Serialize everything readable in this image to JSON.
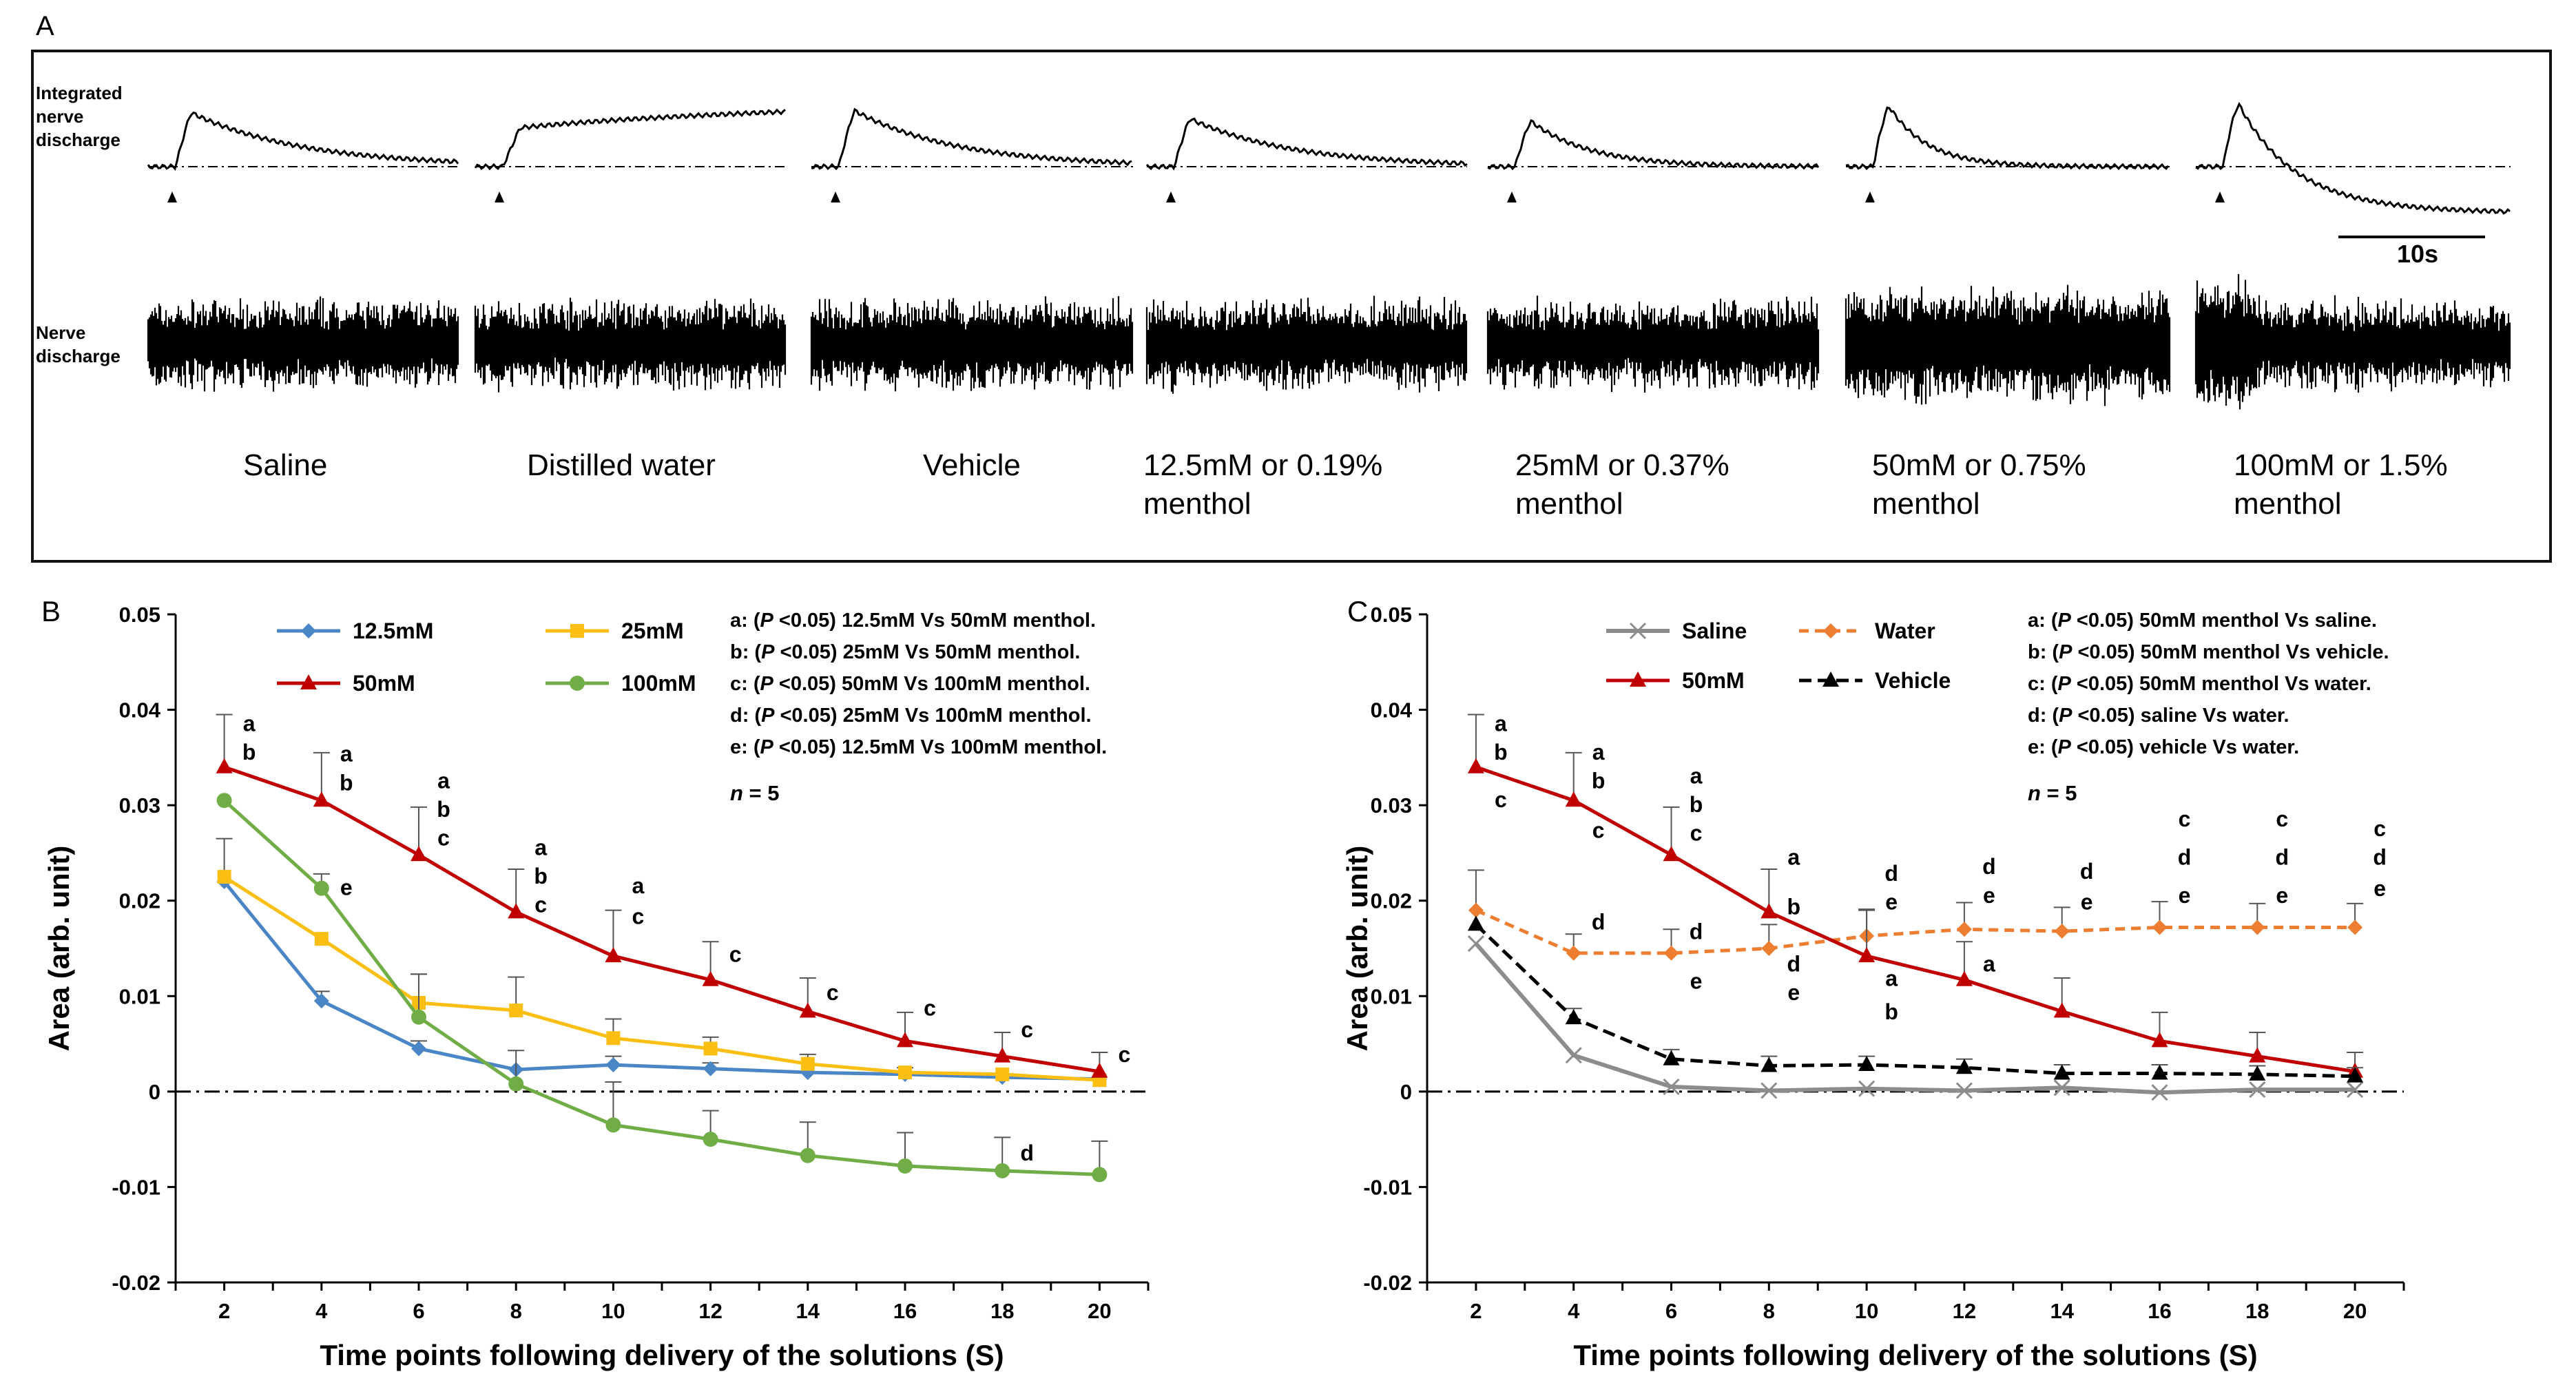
{
  "panel_a": {
    "label": "A",
    "integrated_label": [
      "Integrated",
      "nerve",
      "discharge"
    ],
    "discharge_label": [
      "Nerve",
      "discharge"
    ],
    "scale_bar": "10s",
    "conditions": [
      {
        "lines": [
          "Saline"
        ],
        "decay": 0.9,
        "offset": 0.0,
        "plateau": 0.0,
        "peak": 1.0,
        "riseSlow": false
      },
      {
        "lines": [
          "Distilled water"
        ],
        "decay": 0.0,
        "offset": 0.0,
        "plateau": 0.85,
        "peak": 0.6,
        "riseSlow": true
      },
      {
        "lines": [
          "Vehicle"
        ],
        "decay": 0.8,
        "offset": 0.0,
        "plateau": 0.0,
        "peak": 1.05,
        "riseSlow": false
      },
      {
        "lines": [
          "12.5mM or 0.19%",
          "menthol"
        ],
        "decay": 0.8,
        "offset": 0.0,
        "plateau": 0.0,
        "peak": 0.9,
        "riseSlow": false
      },
      {
        "lines": [
          "25mM or 0.37%",
          "menthol"
        ],
        "decay": 0.45,
        "offset": 0.0,
        "plateau": 0.0,
        "peak": 0.95,
        "riseSlow": false
      },
      {
        "lines": [
          "50mM or 0.75%",
          "menthol"
        ],
        "decay": 0.3,
        "offset": 0.0,
        "plateau": 0.0,
        "peak": 1.45,
        "riseSlow": false
      },
      {
        "lines": [
          "100mM or 1.5%",
          "menthol"
        ],
        "decay": 0.4,
        "offset": -0.75,
        "plateau": 0.0,
        "peak": 1.55,
        "riseSlow": false
      }
    ]
  },
  "chart_data": [
    {
      "type": "line",
      "panel": "B",
      "xlabel": "Time points following delivery of the solutions (S)",
      "ylabel": "Area (arb. unit)",
      "ylim": [
        -0.02,
        0.05
      ],
      "yticks": [
        "0.05",
        "0.04",
        "0.03",
        "0.02",
        "0.01",
        "0",
        "-0.01",
        "-0.02"
      ],
      "x": [
        2,
        4,
        6,
        8,
        10,
        12,
        14,
        16,
        18,
        20
      ],
      "series": [
        {
          "name": "12.5mM",
          "color": "#4a86c5",
          "marker": "diamond",
          "dash": "",
          "values": [
            0.022,
            0.0095,
            0.0045,
            0.0023,
            0.0028,
            0.0024,
            0.002,
            0.0018,
            0.0015,
            0.0013
          ],
          "err": [
            0,
            0.001,
            0.0008,
            0.0,
            0.0009,
            0.0006,
            0.0,
            0.0,
            0.0,
            0.0
          ]
        },
        {
          "name": "25mM",
          "color": "#fbbf14",
          "marker": "square",
          "dash": "",
          "values": [
            0.0225,
            0.016,
            0.0093,
            0.0085,
            0.0056,
            0.0045,
            0.0029,
            0.002,
            0.0018,
            0.0012
          ],
          "err": [
            0.004,
            0.0,
            0.003,
            0.0035,
            0.002,
            0.0012,
            0.001,
            0.0005,
            0.0,
            0.0
          ]
        },
        {
          "name": "50mM",
          "color": "#c00000",
          "marker": "triangle",
          "dash": "",
          "values": [
            0.034,
            0.0305,
            0.0248,
            0.0188,
            0.0142,
            0.0117,
            0.0084,
            0.0053,
            0.0037,
            0.0021
          ],
          "err": [
            0.0055,
            0.005,
            0.005,
            0.0045,
            0.0048,
            0.004,
            0.0035,
            0.003,
            0.0025,
            0.002
          ]
        },
        {
          "name": "100mM",
          "color": "#70ad47",
          "marker": "circle",
          "dash": "",
          "values": [
            0.0305,
            0.0213,
            0.0078,
            0.0008,
            -0.0035,
            -0.005,
            -0.0067,
            -0.0078,
            -0.0083,
            -0.0087
          ],
          "err": [
            0.0,
            0.0015,
            0.0045,
            0.0035,
            0.0045,
            0.003,
            0.0035,
            0.0035,
            0.0035,
            0.0035
          ]
        }
      ],
      "sig": [
        {
          "x": 2,
          "y": 0.0385,
          "text": "a"
        },
        {
          "x": 2,
          "y": 0.0355,
          "text": "b"
        },
        {
          "x": 4,
          "y": 0.0353,
          "text": "a"
        },
        {
          "x": 4,
          "y": 0.0323,
          "text": "b"
        },
        {
          "x": 4,
          "y": 0.0213,
          "text": "e"
        },
        {
          "x": 6,
          "y": 0.0325,
          "text": "a"
        },
        {
          "x": 6,
          "y": 0.0295,
          "text": "b"
        },
        {
          "x": 6,
          "y": 0.0265,
          "text": "c"
        },
        {
          "x": 8,
          "y": 0.0255,
          "text": "a"
        },
        {
          "x": 8,
          "y": 0.0225,
          "text": "b"
        },
        {
          "x": 8,
          "y": 0.0195,
          "text": "c"
        },
        {
          "x": 10,
          "y": 0.0215,
          "text": "a"
        },
        {
          "x": 10,
          "y": 0.0183,
          "text": "c"
        },
        {
          "x": 12,
          "y": 0.0143,
          "text": "c"
        },
        {
          "x": 14,
          "y": 0.0103,
          "text": "c"
        },
        {
          "x": 16,
          "y": 0.0087,
          "text": "c"
        },
        {
          "x": 18,
          "y": 0.0064,
          "text": "c"
        },
        {
          "x": 18,
          "y": -0.0065,
          "text": "d"
        },
        {
          "x": 20,
          "y": 0.0038,
          "text": "c"
        }
      ],
      "notes": [
        {
          "key": "a: (",
          "p": "P",
          "rest": " <0.05) 12.5mM Vs 50mM menthol."
        },
        {
          "key": "b: (",
          "p": "P",
          "rest": " <0.05) 25mM Vs 50mM  menthol."
        },
        {
          "key": "c: (",
          "p": "P",
          "rest": " <0.05) 50mM Vs 100mM menthol."
        },
        {
          "key": "d: (",
          "p": "P",
          "rest": " <0.05) 25mM Vs 100mM menthol."
        },
        {
          "key": "e: (",
          "p": "P",
          "rest": " <0.05) 12.5mM Vs 100mM menthol."
        }
      ],
      "n_label": "n",
      "n_value": " = 5"
    },
    {
      "type": "line",
      "panel": "C",
      "xlabel": "Time points following delivery of the solutions (S)",
      "ylabel": "Area (arb. unit)",
      "ylim": [
        -0.02,
        0.05
      ],
      "yticks": [
        "0.05",
        "0.04",
        "0.03",
        "0.02",
        "0.01",
        "0",
        "-0.01",
        "-0.02"
      ],
      "x": [
        2,
        4,
        6,
        8,
        10,
        12,
        14,
        16,
        18,
        20
      ],
      "series": [
        {
          "name": "Saline",
          "color": "#8c8c8c",
          "marker": "x",
          "dash": "",
          "values": [
            0.0155,
            0.0038,
            0.0005,
            0.0001,
            0.0003,
            0.0001,
            0.0004,
            -0.0001,
            0.0002,
            0.0002
          ],
          "err": [
            0,
            0,
            0,
            0,
            0,
            0,
            0,
            0,
            0,
            0
          ]
        },
        {
          "name": "Water",
          "color": "#ed7d31",
          "marker": "diamond",
          "dash": "14,9",
          "values": [
            0.019,
            0.0145,
            0.0145,
            0.015,
            0.0163,
            0.017,
            0.0168,
            0.0172,
            0.0172,
            0.0172
          ],
          "err": [
            0.0042,
            0.002,
            0.0025,
            0.0025,
            0.0028,
            0.0028,
            0.0025,
            0.0027,
            0.0025,
            0.0025
          ]
        },
        {
          "name": "50mM",
          "color": "#c00000",
          "marker": "triangle",
          "dash": "",
          "values": [
            0.034,
            0.0305,
            0.0248,
            0.0188,
            0.0142,
            0.0117,
            0.0084,
            0.0053,
            0.0037,
            0.0021
          ],
          "err": [
            0.0055,
            0.005,
            0.005,
            0.0045,
            0.0048,
            0.004,
            0.0035,
            0.003,
            0.0025,
            0.002
          ]
        },
        {
          "name": "Vehicle",
          "color": "#000000",
          "marker": "triangle",
          "dash": "18,9",
          "values": [
            0.0175,
            0.0077,
            0.0034,
            0.0027,
            0.0028,
            0.0025,
            0.0019,
            0.0019,
            0.0018,
            0.0016
          ],
          "err": [
            0,
            0.001,
            0.001,
            0.001,
            0.0009,
            0.0009,
            0.0009,
            0.0009,
            0.0009,
            0.0009
          ]
        }
      ],
      "sig": [
        {
          "x": 2,
          "y": 0.0385,
          "text": "a"
        },
        {
          "x": 2,
          "y": 0.0355,
          "text": "b"
        },
        {
          "x": 2,
          "y": 0.0305,
          "text": "c"
        },
        {
          "x": 4,
          "y": 0.0355,
          "text": "a"
        },
        {
          "x": 4,
          "y": 0.0325,
          "text": "b"
        },
        {
          "x": 4,
          "y": 0.0273,
          "text": "c"
        },
        {
          "x": 4,
          "y": 0.0177,
          "text": "d"
        },
        {
          "x": 6,
          "y": 0.033,
          "text": "a"
        },
        {
          "x": 6,
          "y": 0.03,
          "text": "b"
        },
        {
          "x": 6,
          "y": 0.027,
          "text": "c"
        },
        {
          "x": 6,
          "y": 0.0167,
          "text": "d"
        },
        {
          "x": 6,
          "y": 0.0115,
          "text": "e"
        },
        {
          "x": 8,
          "y": 0.0245,
          "text": "a"
        },
        {
          "x": 8,
          "y": 0.0193,
          "text": "b"
        },
        {
          "x": 8,
          "y": 0.0133,
          "text": "d"
        },
        {
          "x": 8,
          "y": 0.0103,
          "text": "e"
        },
        {
          "x": 10,
          "y": 0.0228,
          "text": "d"
        },
        {
          "x": 10,
          "y": 0.0198,
          "text": "e"
        },
        {
          "x": 10,
          "y": 0.0118,
          "text": "a"
        },
        {
          "x": 10,
          "y": 0.0083,
          "text": "b"
        },
        {
          "x": 12,
          "y": 0.0235,
          "text": "d"
        },
        {
          "x": 12,
          "y": 0.0205,
          "text": "e"
        },
        {
          "x": 12,
          "y": 0.0133,
          "text": "a"
        },
        {
          "x": 14,
          "y": 0.023,
          "text": "d"
        },
        {
          "x": 14,
          "y": 0.0198,
          "text": "e"
        },
        {
          "x": 16,
          "y": 0.0285,
          "text": "c"
        },
        {
          "x": 16,
          "y": 0.0245,
          "text": "d"
        },
        {
          "x": 16,
          "y": 0.0205,
          "text": "e"
        },
        {
          "x": 18,
          "y": 0.0285,
          "text": "c"
        },
        {
          "x": 18,
          "y": 0.0245,
          "text": "d"
        },
        {
          "x": 18,
          "y": 0.0205,
          "text": "e"
        },
        {
          "x": 20,
          "y": 0.0275,
          "text": "c"
        },
        {
          "x": 20,
          "y": 0.0245,
          "text": "d"
        },
        {
          "x": 20,
          "y": 0.0212,
          "text": "e"
        }
      ],
      "notes": [
        {
          "key": "a: (",
          "p": "P",
          "rest": " <0.05) 50mM menthol Vs saline."
        },
        {
          "key": "b: (",
          "p": "P",
          "rest": " <0.05) 50mM menthol Vs vehicle."
        },
        {
          "key": "c: (",
          "p": "P",
          "rest": " <0.05) 50mM menthol Vs water."
        },
        {
          "key": "d: (",
          "p": "P",
          "rest": " <0.05) saline Vs water."
        },
        {
          "key": "e: (",
          "p": "P",
          "rest": " <0.05) vehicle Vs water."
        }
      ],
      "n_label": "n",
      "n_value": " = 5"
    }
  ]
}
